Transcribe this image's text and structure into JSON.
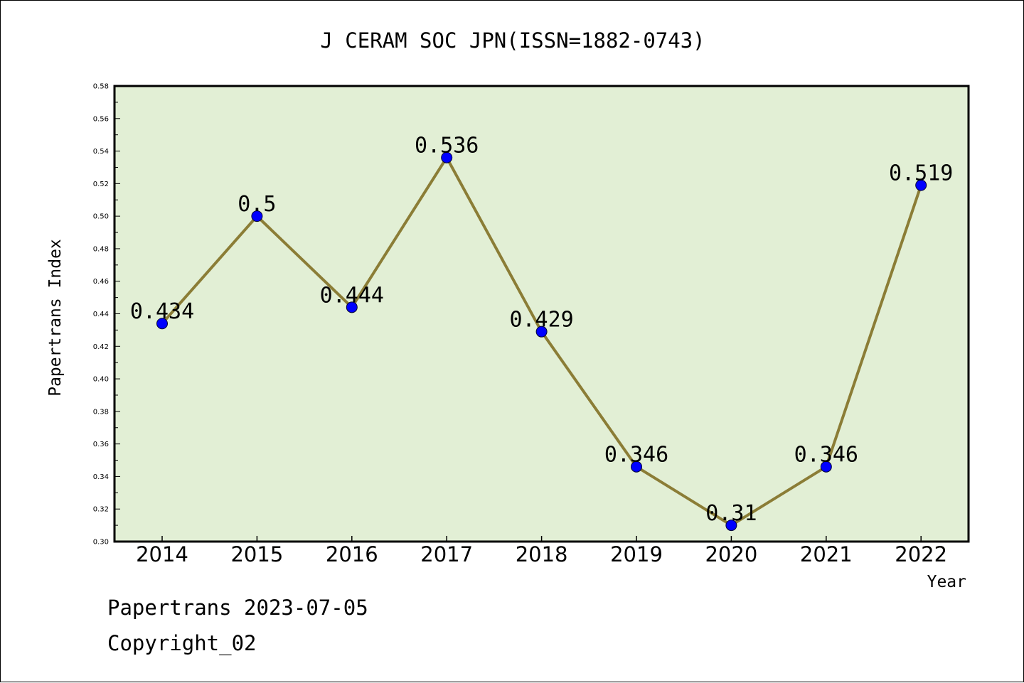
{
  "chart_data": {
    "type": "line",
    "title": "J CERAM SOC JPN(ISSN=1882-0743)",
    "xlabel": "Year",
    "ylabel": "Papertrans Index",
    "categories": [
      "2014",
      "2015",
      "2016",
      "2017",
      "2018",
      "2019",
      "2020",
      "2021",
      "2022"
    ],
    "series": [
      {
        "values": [
          0.434,
          0.5,
          0.444,
          0.536,
          0.429,
          0.346,
          0.31,
          0.346,
          0.519
        ]
      }
    ],
    "data_labels": [
      "0.434",
      "0.5",
      "0.444",
      "0.536",
      "0.429",
      "0.346",
      "0.31",
      "0.346",
      "0.519"
    ],
    "ylim": [
      0.3,
      0.58
    ],
    "yticks": [
      "0.30",
      "0.32",
      "0.34",
      "0.36",
      "0.38",
      "0.40",
      "0.42",
      "0.44",
      "0.46",
      "0.48",
      "0.50",
      "0.52",
      "0.54",
      "0.56",
      "0.58"
    ],
    "grid": false,
    "legend": "none",
    "colors": {
      "plot_background": "#e2efd5",
      "line": "#8b7d36",
      "marker": "#0000ff"
    }
  },
  "footer": {
    "source": "Papertrans 2023-07-05",
    "copyright": "Copyright_02"
  }
}
